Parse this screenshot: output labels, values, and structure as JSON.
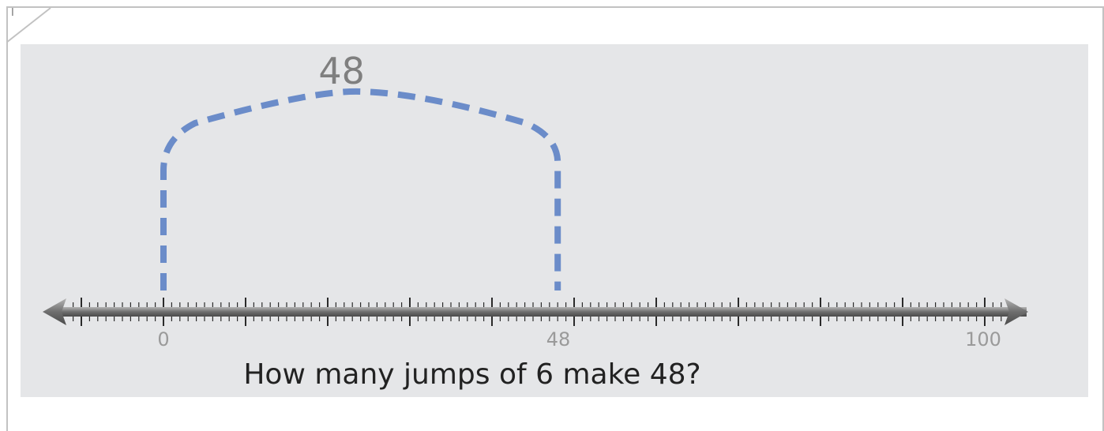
{
  "corner_marker": "I",
  "question": "How many jumps of 6 make 48?",
  "number_line": {
    "min": 0,
    "max": 100,
    "labels": [
      "0",
      "48",
      "100"
    ],
    "jump": {
      "from": 0,
      "to": 48,
      "label": "48"
    }
  },
  "colors": {
    "panel": "#e5e6e8",
    "jump_arc": "#6b8cc9",
    "axis": "#808080",
    "tick": "#2b2b2b",
    "label": "#9a9a9a"
  }
}
